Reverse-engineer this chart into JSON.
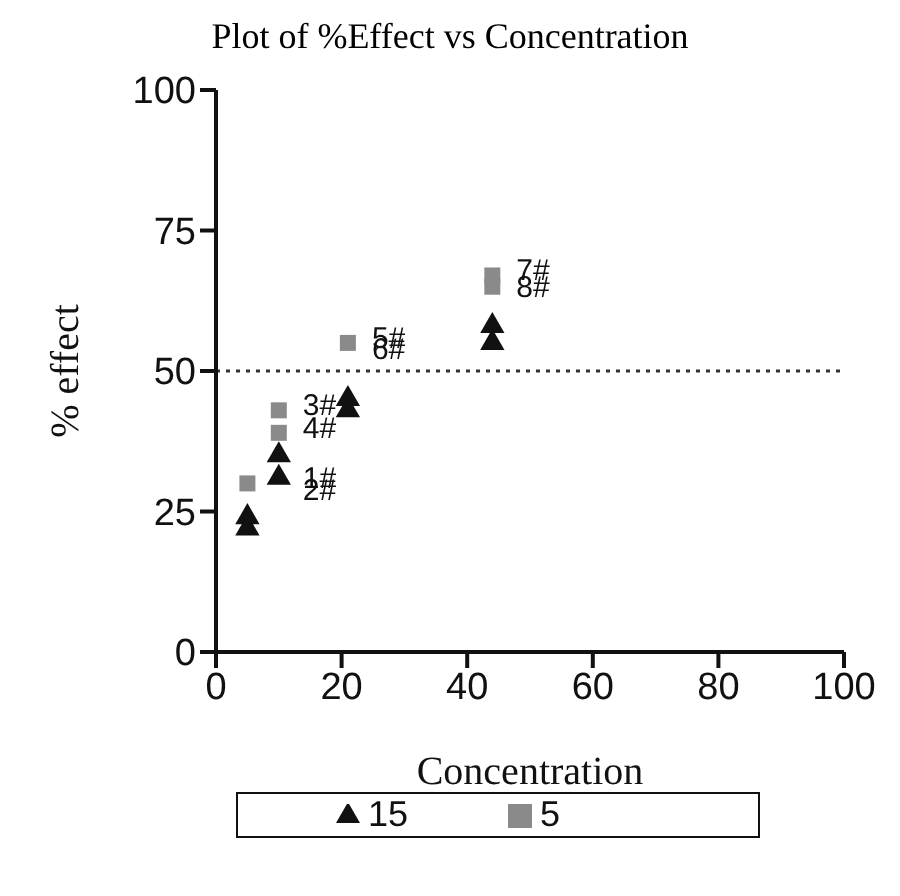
{
  "chart_data": {
    "type": "scatter",
    "title": "Plot of %Effect vs Concentration",
    "xlabel": "Concentration",
    "ylabel": "% effect",
    "xlim": [
      0,
      100
    ],
    "xticks": [
      0,
      20,
      40,
      60,
      80,
      100
    ],
    "ylim": [
      0,
      100
    ],
    "yticks": [
      0,
      25,
      50,
      75,
      100
    ],
    "legend": "bottom",
    "series": [
      {
        "name": "5",
        "color": "#8a8a8a",
        "marker": "square",
        "x": [
          5,
          10,
          10,
          21,
          44,
          44
        ],
        "values": [
          30,
          43,
          39,
          55,
          67,
          65
        ]
      },
      {
        "name": "15",
        "color": "#111111",
        "marker": "triangle",
        "x": [
          5,
          5,
          10,
          10,
          21,
          21,
          44,
          44
        ],
        "values": [
          24,
          22,
          35,
          31,
          45,
          43,
          58,
          55
        ]
      }
    ],
    "ref_lines": [
      {
        "axis": "y",
        "value": 50,
        "line_style": "dotted",
        "color": "#333333"
      }
    ],
    "annotations": [
      {
        "text": "1#",
        "x": 10,
        "y": 31
      },
      {
        "text": "2#",
        "x": 10,
        "y": 29
      },
      {
        "text": "3#",
        "x": 10,
        "y": 44
      },
      {
        "text": "4#",
        "x": 10,
        "y": 40
      },
      {
        "text": "5#",
        "x": 21,
        "y": 56
      },
      {
        "text": "6#",
        "x": 21,
        "y": 54
      },
      {
        "text": "7#",
        "x": 44,
        "y": 68
      },
      {
        "text": "8#",
        "x": 44,
        "y": 65
      }
    ]
  }
}
